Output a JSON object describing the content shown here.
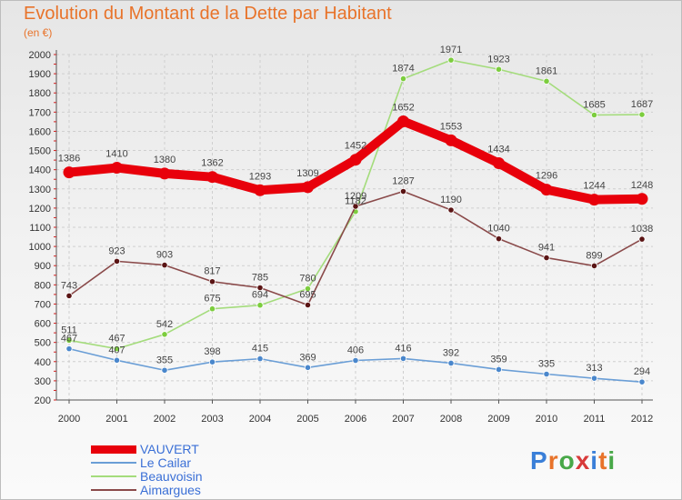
{
  "title": "Evolution du Montant de la Dette par Habitant",
  "unit_label": "(en €)",
  "logo": {
    "text": "Proxiti",
    "colors": [
      "#3a7fd8",
      "#e8732a",
      "#48a848",
      "#d83a3a",
      "#3a7fd8",
      "#e8732a",
      "#48a848"
    ]
  },
  "chart_data": {
    "type": "line",
    "title": "Evolution du Montant de la Dette par Habitant",
    "ylabel": "(en €)",
    "x": [
      "2000",
      "2001",
      "2002",
      "2003",
      "2004",
      "2005",
      "2006",
      "2007",
      "2008",
      "2009",
      "2010",
      "2011",
      "2012"
    ],
    "ylim": [
      200,
      2000
    ],
    "yticks": [
      200,
      300,
      400,
      500,
      600,
      700,
      800,
      900,
      1000,
      1100,
      1200,
      1300,
      1400,
      1500,
      1600,
      1700,
      1800,
      1900,
      2000
    ],
    "grid": true,
    "legend_position": "bottom-left",
    "series": [
      {
        "name": "VAUVERT",
        "color": "#e8000b",
        "emphasis": true,
        "values": [
          1386,
          1410,
          1380,
          1362,
          1293,
          1309,
          1452,
          1652,
          1553,
          1434,
          1296,
          1244,
          1248
        ]
      },
      {
        "name": "Le Cailar",
        "color": "#6a9ed6",
        "marker": "#4a87cc",
        "values": [
          467,
          407,
          355,
          398,
          415,
          369,
          406,
          416,
          392,
          359,
          335,
          313,
          294
        ]
      },
      {
        "name": "Beauvoisin",
        "color": "#a4dc7c",
        "marker": "#7ccd3e",
        "values": [
          511,
          467,
          542,
          675,
          694,
          780,
          1182,
          1874,
          1971,
          1923,
          1861,
          1685,
          1687
        ]
      },
      {
        "name": "Aimargues",
        "color": "#8a4a4a",
        "marker": "#5a1414",
        "values": [
          743,
          923,
          903,
          817,
          785,
          695,
          1209,
          1287,
          1190,
          1040,
          941,
          899,
          1038
        ]
      }
    ]
  }
}
